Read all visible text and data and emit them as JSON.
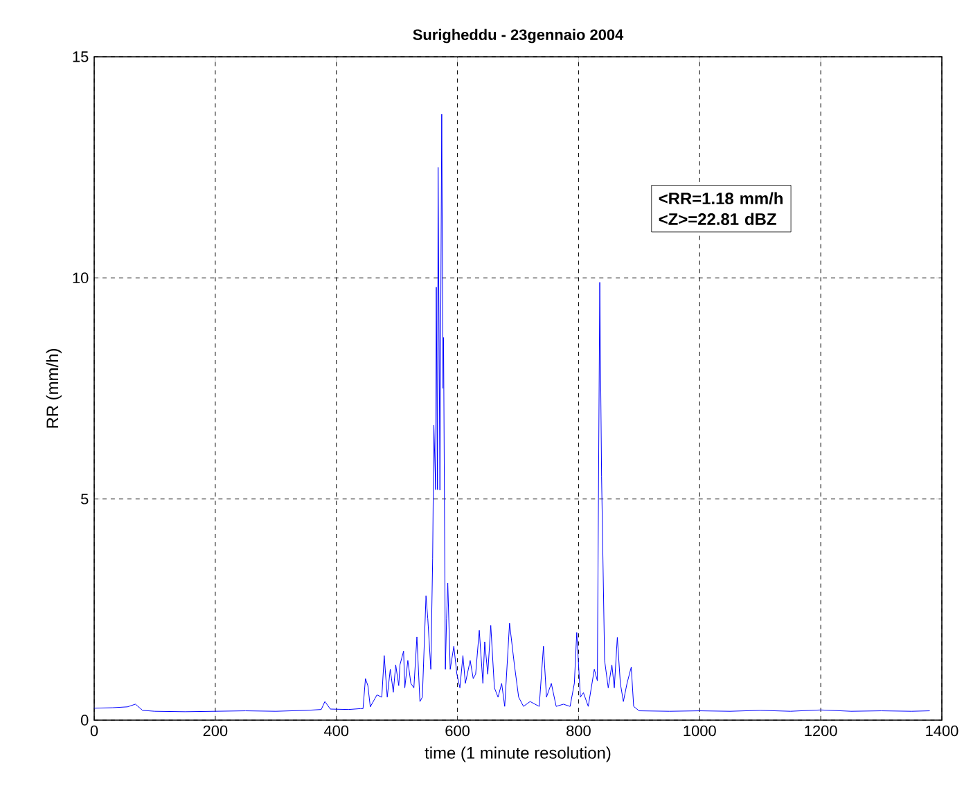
{
  "chart_data": {
    "type": "line",
    "title": "Surigheddu - 23gennaio 2004",
    "xlabel": "time (1 minute resolution)",
    "ylabel": "RR (mm/h)",
    "annotations": [
      "<RR=1.18 mm/h",
      "<Z>=22.81 dBZ"
    ],
    "xlim": [
      0,
      1400
    ],
    "ylim": [
      0,
      15
    ],
    "xticks": [
      0,
      200,
      400,
      600,
      800,
      1000,
      1200,
      1400
    ],
    "yticks": [
      0,
      5,
      10,
      15
    ],
    "grid": true,
    "line_style": "solid",
    "marker": "none",
    "series": [
      {
        "color": "#0000ff",
        "x": [
          0,
          30,
          55,
          68,
          80,
          100,
          150,
          200,
          250,
          300,
          350,
          375,
          381,
          390,
          420,
          440,
          444,
          448,
          452,
          456,
          467,
          475,
          479,
          484,
          489,
          494,
          498,
          503,
          505,
          511,
          513,
          518,
          523,
          528,
          533,
          538,
          542,
          548,
          551,
          556,
          559,
          561,
          564,
          565,
          567,
          568,
          571,
          574,
          576,
          577,
          580,
          582,
          584,
          588,
          594,
          599,
          604,
          609,
          613,
          621,
          626,
          630,
          636,
          642,
          645,
          650,
          655,
          661,
          667,
          673,
          678,
          686,
          694,
          701,
          709,
          720,
          735,
          742,
          747,
          755,
          763,
          775,
          786,
          793,
          797,
          803,
          808,
          816,
          826,
          831,
          835,
          838,
          843,
          849,
          855,
          859,
          864,
          869,
          874,
          880,
          887,
          891,
          900,
          950,
          1000,
          1050,
          1100,
          1150,
          1200,
          1250,
          1300,
          1350,
          1380
        ],
        "values": [
          0.27,
          0.28,
          0.3,
          0.36,
          0.22,
          0.2,
          0.19,
          0.2,
          0.21,
          0.2,
          0.22,
          0.24,
          0.42,
          0.25,
          0.24,
          0.26,
          0.26,
          0.94,
          0.78,
          0.3,
          0.57,
          0.52,
          1.46,
          0.52,
          1.15,
          0.63,
          1.25,
          0.78,
          1.25,
          1.56,
          0.73,
          1.35,
          0.83,
          0.73,
          1.88,
          0.42,
          0.52,
          2.81,
          2.29,
          1.15,
          3.65,
          6.67,
          5.21,
          9.79,
          5.21,
          12.5,
          5.2,
          13.7,
          7.5,
          8.65,
          1.15,
          2.29,
          3.1,
          1.15,
          1.67,
          1.04,
          0.73,
          1.46,
          0.83,
          1.35,
          0.94,
          1.04,
          2.03,
          0.83,
          1.77,
          1.04,
          2.14,
          0.73,
          0.52,
          0.83,
          0.31,
          2.19,
          1.25,
          0.52,
          0.31,
          0.42,
          0.31,
          1.67,
          0.52,
          0.83,
          0.31,
          0.36,
          0.31,
          0.83,
          1.98,
          0.52,
          0.62,
          0.31,
          1.15,
          0.89,
          9.9,
          5.5,
          1.35,
          0.73,
          1.25,
          0.73,
          1.87,
          0.83,
          0.42,
          0.83,
          1.2,
          0.31,
          0.21,
          0.2,
          0.21,
          0.2,
          0.22,
          0.2,
          0.23,
          0.2,
          0.21,
          0.2,
          0.21
        ]
      }
    ]
  }
}
